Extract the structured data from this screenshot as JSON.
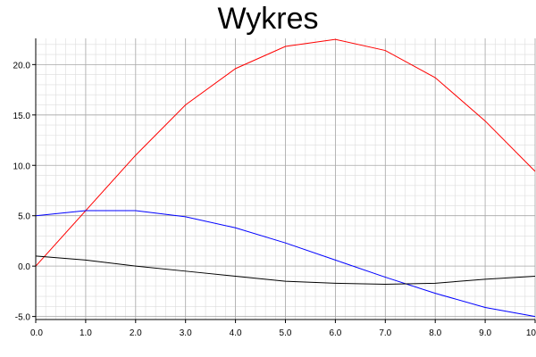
{
  "chart_data": {
    "type": "line",
    "title": "Wykres",
    "xlabel": "",
    "ylabel": "",
    "xlim": [
      0,
      10
    ],
    "ylim": [
      -5.3,
      22.6
    ],
    "x_ticks": [
      "0.0",
      "1.0",
      "2.0",
      "3.0",
      "4.0",
      "5.0",
      "6.0",
      "7.0",
      "8.0",
      "9.0",
      "10"
    ],
    "y_ticks": [
      "-5.0",
      "0.0",
      "5.0",
      "10.0",
      "15.0",
      "20.0"
    ],
    "grid": true,
    "legend": "none",
    "x": [
      0,
      1,
      2,
      3,
      4,
      5,
      6,
      7,
      8,
      9,
      10
    ],
    "series": [
      {
        "color": "#ff0000",
        "values": [
          0.0,
          5.5,
          11.0,
          16.0,
          19.6,
          21.8,
          22.5,
          21.4,
          18.7,
          14.4,
          9.4
        ]
      },
      {
        "color": "#0000ff",
        "values": [
          5.0,
          5.5,
          5.5,
          4.9,
          3.8,
          2.3,
          0.6,
          -1.1,
          -2.7,
          -4.1,
          -5.0
        ]
      },
      {
        "color": "#000000",
        "values": [
          1.0,
          0.6,
          0.0,
          -0.5,
          -1.0,
          -1.5,
          -1.7,
          -1.8,
          -1.7,
          -1.3,
          -1.0
        ]
      }
    ]
  }
}
